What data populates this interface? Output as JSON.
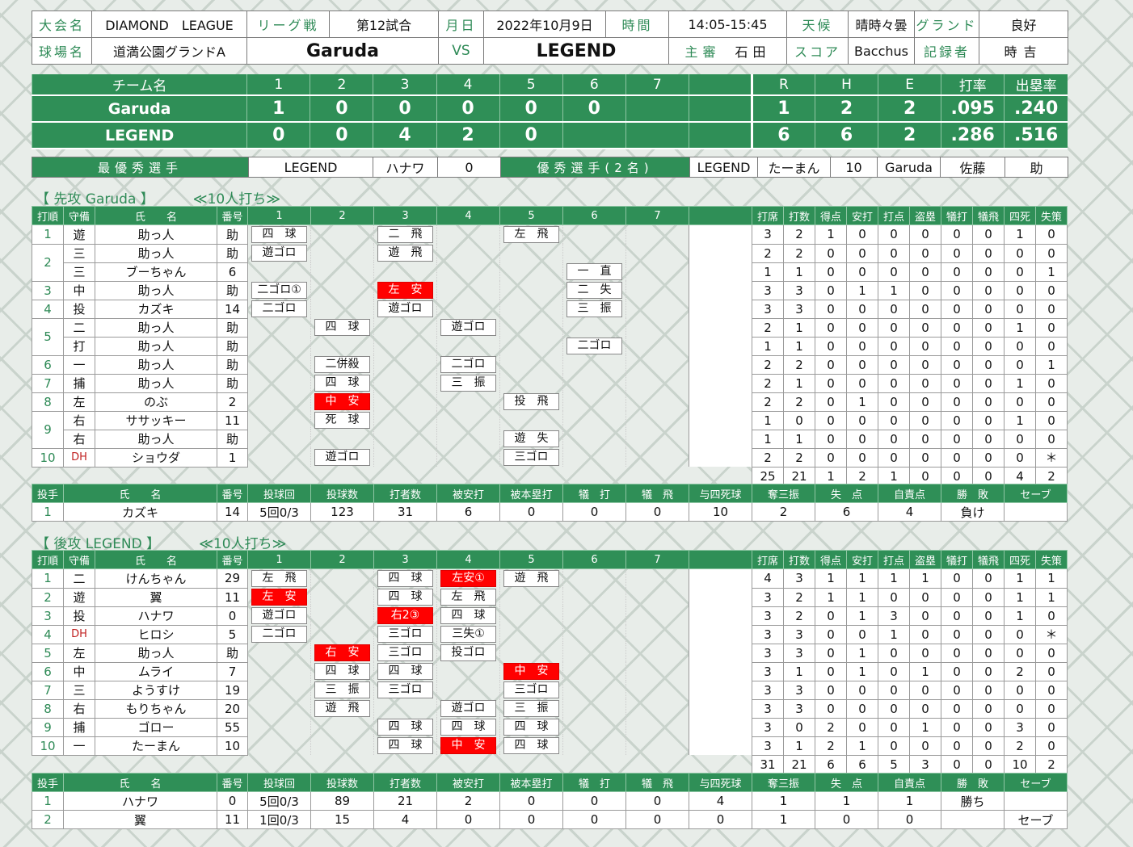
{
  "info": {
    "tournament_label": "大会名",
    "tournament": "DIAMOND　LEAGUE",
    "type_label": "リーグ戦",
    "game_no": "第12試合",
    "date_label": "月日",
    "date": "2022年10月9日",
    "time_label": "時間",
    "time": "14:05-15:45",
    "weather_label": "天候",
    "weather": "晴時々曇",
    "ground_label": "グランド",
    "ground": "良好",
    "venue_label": "球場名",
    "venue": "道満公園グランドA",
    "team1": "Garuda",
    "vs": "VS",
    "team2": "LEGEND",
    "umpire_label": "主審",
    "umpire": "石田",
    "scorer_label": "スコア",
    "scorer": "Bacchus",
    "recorder_label": "記録者",
    "recorder": "時吉"
  },
  "linescore": {
    "headers": [
      "チーム名",
      "1",
      "2",
      "3",
      "4",
      "5",
      "6",
      "7",
      "",
      "R",
      "H",
      "E",
      "打率",
      "出塁率"
    ],
    "rows": [
      [
        "Garuda",
        "1",
        "0",
        "0",
        "0",
        "0",
        "0",
        "",
        "",
        "1",
        "2",
        "2",
        ".095",
        ".240"
      ],
      [
        "LEGEND",
        "0",
        "0",
        "4",
        "2",
        "0",
        "",
        "",
        "",
        "6",
        "6",
        "2",
        ".286",
        ".516"
      ]
    ]
  },
  "awards": {
    "mvp_label": "最優秀選手",
    "mvp_team": "LEGEND",
    "mvp_name": "ハナワ",
    "mvp_no": "0",
    "excellent_label": "優秀選手(2名)",
    "ex1_team": "LEGEND",
    "ex1_name": "たーまん",
    "ex1_no": "10",
    "ex2_team": "Garuda",
    "ex2_name": "佐藤",
    "ex2_no": "助"
  },
  "top": {
    "title": "【 先攻 Garuda 】",
    "note": "≪10人打ち≫",
    "bat_headers": [
      "打順",
      "守備",
      "氏　　名",
      "番号",
      "1",
      "2",
      "3",
      "4",
      "5",
      "6",
      "7",
      "",
      "打席",
      "打数",
      "得点",
      "安打",
      "打点",
      "盗塁",
      "犠打",
      "犠飛",
      "四死",
      "失策"
    ],
    "batters": [
      {
        "order": "1",
        "pos": "遊",
        "name": "助っ人",
        "no": "助",
        "pa": [
          "四　球",
          "",
          "二　飛",
          "",
          "左　飛",
          "",
          ""
        ],
        "hit": [],
        "stats": [
          "3",
          "2",
          "1",
          "0",
          "0",
          "0",
          "0",
          "0",
          "1",
          "0"
        ]
      },
      {
        "order": "2",
        "pos": "三",
        "name": "助っ人",
        "no": "助",
        "pa": [
          "遊ゴロ",
          "",
          "遊　飛",
          "",
          "",
          "",
          ""
        ],
        "hit": [],
        "stats": [
          "2",
          "2",
          "0",
          "0",
          "0",
          "0",
          "0",
          "0",
          "0",
          "0"
        ]
      },
      {
        "order": "",
        "pos": "三",
        "name": "ブーちゃん",
        "no": "6",
        "pa": [
          "",
          "",
          "",
          "",
          "",
          "一　直",
          ""
        ],
        "hit": [],
        "stats": [
          "1",
          "1",
          "0",
          "0",
          "0",
          "0",
          "0",
          "0",
          "0",
          "1"
        ]
      },
      {
        "order": "3",
        "pos": "中",
        "name": "助っ人",
        "no": "助",
        "pa": [
          "二ゴロ①",
          "",
          "左　安",
          "",
          "",
          "二　失",
          ""
        ],
        "hit": [
          2
        ],
        "stats": [
          "3",
          "3",
          "0",
          "1",
          "1",
          "0",
          "0",
          "0",
          "0",
          "0"
        ]
      },
      {
        "order": "4",
        "pos": "投",
        "name": "カズキ",
        "no": "14",
        "pa": [
          "二ゴロ",
          "",
          "遊ゴロ",
          "",
          "",
          "三　振",
          ""
        ],
        "hit": [],
        "stats": [
          "3",
          "3",
          "0",
          "0",
          "0",
          "0",
          "0",
          "0",
          "0",
          "0"
        ]
      },
      {
        "order": "5",
        "pos": "二",
        "name": "助っ人",
        "no": "助",
        "pa": [
          "",
          "四　球",
          "",
          "遊ゴロ",
          "",
          "",
          ""
        ],
        "hit": [],
        "stats": [
          "2",
          "1",
          "0",
          "0",
          "0",
          "0",
          "0",
          "0",
          "1",
          "0"
        ]
      },
      {
        "order": "",
        "pos": "打",
        "name": "助っ人",
        "no": "助",
        "pa": [
          "",
          "",
          "",
          "",
          "",
          "二ゴロ",
          ""
        ],
        "hit": [],
        "stats": [
          "1",
          "1",
          "0",
          "0",
          "0",
          "0",
          "0",
          "0",
          "0",
          "0"
        ]
      },
      {
        "order": "6",
        "pos": "一",
        "name": "助っ人",
        "no": "助",
        "pa": [
          "",
          "二併殺",
          "",
          "二ゴロ",
          "",
          "",
          ""
        ],
        "hit": [],
        "stats": [
          "2",
          "2",
          "0",
          "0",
          "0",
          "0",
          "0",
          "0",
          "0",
          "1"
        ]
      },
      {
        "order": "7",
        "pos": "捕",
        "name": "助っ人",
        "no": "助",
        "pa": [
          "",
          "四　球",
          "",
          "三　振",
          "",
          "",
          ""
        ],
        "hit": [],
        "stats": [
          "2",
          "1",
          "0",
          "0",
          "0",
          "0",
          "0",
          "0",
          "1",
          "0"
        ]
      },
      {
        "order": "8",
        "pos": "左",
        "name": "のぶ",
        "no": "2",
        "pa": [
          "",
          "中　安",
          "",
          "",
          "投　飛",
          "",
          ""
        ],
        "hit": [
          1
        ],
        "stats": [
          "2",
          "2",
          "0",
          "1",
          "0",
          "0",
          "0",
          "0",
          "0",
          "0"
        ]
      },
      {
        "order": "9",
        "pos": "右",
        "name": "ササッキー",
        "no": "11",
        "pa": [
          "",
          "死　球",
          "",
          "",
          "",
          "",
          ""
        ],
        "hit": [],
        "stats": [
          "1",
          "0",
          "0",
          "0",
          "0",
          "0",
          "0",
          "0",
          "1",
          "0"
        ]
      },
      {
        "order": "",
        "pos": "右",
        "name": "助っ人",
        "no": "助",
        "pa": [
          "",
          "",
          "",
          "",
          "遊　失",
          "",
          ""
        ],
        "hit": [],
        "stats": [
          "1",
          "1",
          "0",
          "0",
          "0",
          "0",
          "0",
          "0",
          "0",
          "0"
        ]
      },
      {
        "order": "10",
        "pos": "DH",
        "name": "ショウダ",
        "no": "1",
        "pa": [
          "",
          "遊ゴロ",
          "",
          "",
          "三ゴロ",
          "",
          ""
        ],
        "hit": [],
        "stats": [
          "2",
          "2",
          "0",
          "0",
          "0",
          "0",
          "0",
          "0",
          "0",
          "＊"
        ]
      }
    ],
    "totals": [
      "25",
      "21",
      "1",
      "2",
      "1",
      "0",
      "0",
      "0",
      "4",
      "2"
    ],
    "pit_headers": [
      "投手",
      "氏　　名",
      "番号",
      "投球回",
      "投球数",
      "打者数",
      "被安打",
      "被本塁打",
      "犠　打",
      "犠　飛",
      "与四死球",
      "奪三振",
      "失　点",
      "自責点",
      "勝　敗",
      "セーブ"
    ],
    "pitchers": [
      [
        "1",
        "カズキ",
        "14",
        "5回0/3",
        "123",
        "31",
        "6",
        "0",
        "0",
        "0",
        "10",
        "2",
        "6",
        "4",
        "負け",
        ""
      ]
    ]
  },
  "bottom": {
    "title": "【 後攻 LEGEND 】",
    "note": "≪10人打ち≫",
    "bat_headers": [
      "打順",
      "守備",
      "氏　　名",
      "番号",
      "1",
      "2",
      "3",
      "4",
      "5",
      "6",
      "7",
      "",
      "打席",
      "打数",
      "得点",
      "安打",
      "打点",
      "盗塁",
      "犠打",
      "犠飛",
      "四死",
      "失策"
    ],
    "batters": [
      {
        "order": "1",
        "pos": "二",
        "name": "けんちゃん",
        "no": "29",
        "pa": [
          "左　飛",
          "",
          "四　球",
          "左安①",
          "遊　飛",
          "",
          ""
        ],
        "hit": [
          3
        ],
        "stats": [
          "4",
          "3",
          "1",
          "1",
          "1",
          "1",
          "0",
          "0",
          "1",
          "1"
        ]
      },
      {
        "order": "2",
        "pos": "遊",
        "name": "翼",
        "no": "11",
        "pa": [
          "左　安",
          "",
          "四　球",
          "左　飛",
          "",
          "",
          ""
        ],
        "hit": [
          0
        ],
        "stats": [
          "3",
          "2",
          "1",
          "1",
          "0",
          "0",
          "0",
          "0",
          "1",
          "1"
        ]
      },
      {
        "order": "3",
        "pos": "投",
        "name": "ハナワ",
        "no": "0",
        "pa": [
          "遊ゴロ",
          "",
          "右2③",
          "四　球",
          "",
          "",
          ""
        ],
        "hit": [
          2
        ],
        "stats": [
          "3",
          "2",
          "0",
          "1",
          "3",
          "0",
          "0",
          "0",
          "1",
          "0"
        ]
      },
      {
        "order": "4",
        "pos": "DH",
        "name": "ヒロシ",
        "no": "5",
        "pa": [
          "二ゴロ",
          "",
          "三ゴロ",
          "三失①",
          "",
          "",
          ""
        ],
        "hit": [],
        "stats": [
          "3",
          "3",
          "0",
          "0",
          "1",
          "0",
          "0",
          "0",
          "0",
          "＊"
        ]
      },
      {
        "order": "5",
        "pos": "左",
        "name": "助っ人",
        "no": "助",
        "pa": [
          "",
          "右　安",
          "三ゴロ",
          "投ゴロ",
          "",
          "",
          ""
        ],
        "hit": [
          1
        ],
        "stats": [
          "3",
          "3",
          "0",
          "1",
          "0",
          "0",
          "0",
          "0",
          "0",
          "0"
        ]
      },
      {
        "order": "6",
        "pos": "中",
        "name": "ムライ",
        "no": "7",
        "pa": [
          "",
          "四　球",
          "四　球",
          "",
          "中　安",
          "",
          ""
        ],
        "hit": [
          4
        ],
        "stats": [
          "3",
          "1",
          "0",
          "1",
          "0",
          "1",
          "0",
          "0",
          "2",
          "0"
        ]
      },
      {
        "order": "7",
        "pos": "三",
        "name": "ようすけ",
        "no": "19",
        "pa": [
          "",
          "三　振",
          "三ゴロ",
          "",
          "三ゴロ",
          "",
          ""
        ],
        "hit": [],
        "stats": [
          "3",
          "3",
          "0",
          "0",
          "0",
          "0",
          "0",
          "0",
          "0",
          "0"
        ]
      },
      {
        "order": "8",
        "pos": "右",
        "name": "もりちゃん",
        "no": "20",
        "pa": [
          "",
          "遊　飛",
          "",
          "遊ゴロ",
          "三　振",
          "",
          ""
        ],
        "hit": [],
        "stats": [
          "3",
          "3",
          "0",
          "0",
          "0",
          "0",
          "0",
          "0",
          "0",
          "0"
        ]
      },
      {
        "order": "9",
        "pos": "捕",
        "name": "ゴロー",
        "no": "55",
        "pa": [
          "",
          "",
          "四　球",
          "四　球",
          "四　球",
          "",
          ""
        ],
        "hit": [],
        "stats": [
          "3",
          "0",
          "2",
          "0",
          "0",
          "1",
          "0",
          "0",
          "3",
          "0"
        ]
      },
      {
        "order": "10",
        "pos": "一",
        "name": "たーまん",
        "no": "10",
        "pa": [
          "",
          "",
          "四　球",
          "中　安",
          "四　球",
          "",
          ""
        ],
        "hit": [
          3
        ],
        "stats": [
          "3",
          "1",
          "2",
          "1",
          "0",
          "0",
          "0",
          "0",
          "2",
          "0"
        ]
      }
    ],
    "totals": [
      "31",
      "21",
      "6",
      "6",
      "5",
      "3",
      "0",
      "0",
      "10",
      "2"
    ],
    "pit_headers": [
      "投手",
      "氏　　名",
      "番号",
      "投球回",
      "投球数",
      "打者数",
      "被安打",
      "被本塁打",
      "犠　打",
      "犠　飛",
      "与四死球",
      "奪三振",
      "失　点",
      "自責点",
      "勝　敗",
      "セーブ"
    ],
    "pitchers": [
      [
        "1",
        "ハナワ",
        "0",
        "5回0/3",
        "89",
        "21",
        "2",
        "0",
        "0",
        "0",
        "4",
        "1",
        "1",
        "1",
        "勝ち",
        ""
      ],
      [
        "2",
        "翼",
        "11",
        "1回0/3",
        "15",
        "4",
        "0",
        "0",
        "0",
        "0",
        "0",
        "1",
        "0",
        "0",
        "",
        "セーブ"
      ]
    ]
  }
}
